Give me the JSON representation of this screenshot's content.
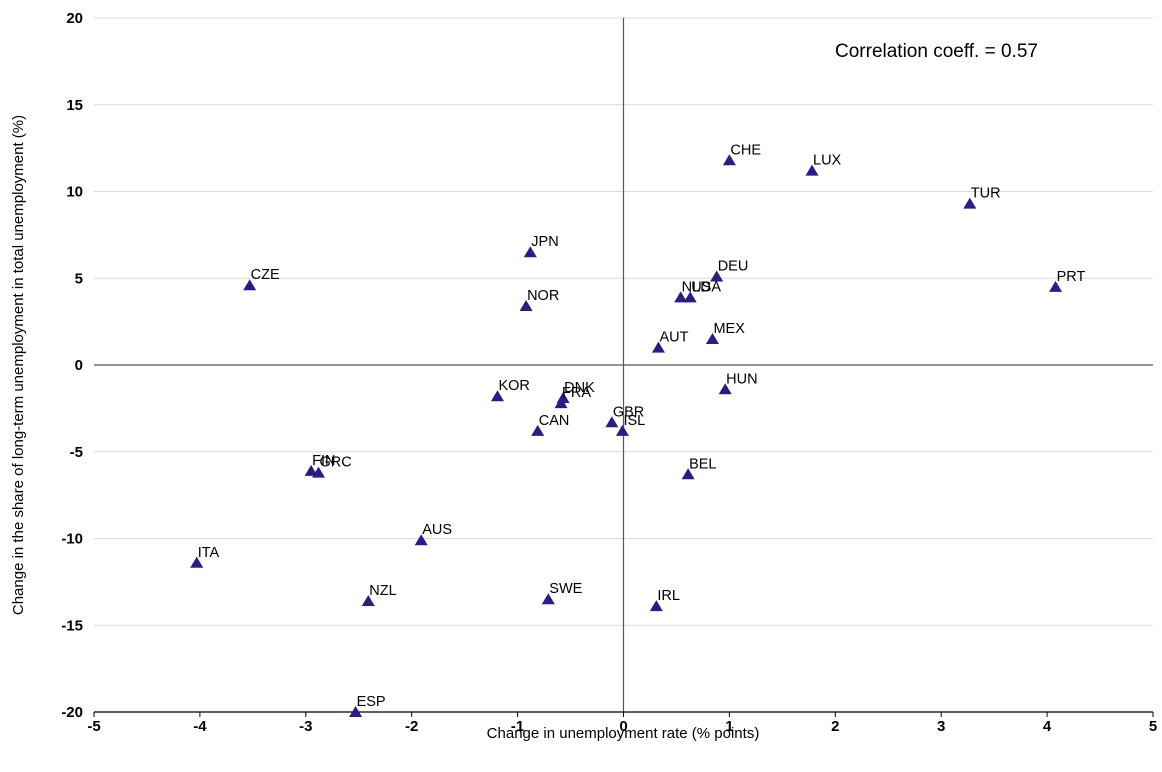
{
  "chart_data": {
    "type": "scatter",
    "title": "",
    "xlabel": "Change in unemployment rate (% points)",
    "ylabel": "Change in the share of long-term unemployment in total unemployment (%)",
    "xlim": [
      -5,
      5
    ],
    "ylim": [
      -20,
      20
    ],
    "xticks": [
      "-5",
      "-4",
      "-3",
      "-2",
      "-1",
      "0",
      "1",
      "2",
      "3",
      "4",
      "5"
    ],
    "yticks": [
      "20",
      "15",
      "10",
      "5",
      "0",
      "-5",
      "-10",
      "-15",
      "-20"
    ],
    "grid": "horizontal",
    "annotation": "Correlation coeff. = 0.57",
    "colors": {
      "marker": "#2e1a87",
      "grid": "#d9d9d9",
      "axis": "#555555"
    },
    "points": [
      {
        "label": "CHE",
        "x": 1.0,
        "y": 11.8
      },
      {
        "label": "LUX",
        "x": 1.78,
        "y": 11.2
      },
      {
        "label": "TUR",
        "x": 3.27,
        "y": 9.3
      },
      {
        "label": "JPN",
        "x": -0.88,
        "y": 6.5
      },
      {
        "label": "CZE",
        "x": -3.53,
        "y": 4.6
      },
      {
        "label": "DEU",
        "x": 0.88,
        "y": 5.1
      },
      {
        "label": "PRT",
        "x": 4.08,
        "y": 4.5
      },
      {
        "label": "USA",
        "x": 0.63,
        "y": 3.9
      },
      {
        "label": "NLD",
        "x": 0.54,
        "y": 3.9
      },
      {
        "label": "NOR",
        "x": -0.92,
        "y": 3.4
      },
      {
        "label": "MEX",
        "x": 0.84,
        "y": 1.5
      },
      {
        "label": "AUT",
        "x": 0.33,
        "y": 1.0
      },
      {
        "label": "HUN",
        "x": 0.96,
        "y": -1.4
      },
      {
        "label": "KOR",
        "x": -1.19,
        "y": -1.8
      },
      {
        "label": "DNK",
        "x": -0.57,
        "y": -1.9
      },
      {
        "label": "FRA",
        "x": -0.59,
        "y": -2.2
      },
      {
        "label": "GBR",
        "x": -0.11,
        "y": -3.3
      },
      {
        "label": "CAN",
        "x": -0.81,
        "y": -3.8
      },
      {
        "label": "ISL",
        "x": -0.01,
        "y": -3.8
      },
      {
        "label": "FIN",
        "x": -2.95,
        "y": -6.1
      },
      {
        "label": "GRC",
        "x": -2.88,
        "y": -6.2
      },
      {
        "label": "BEL",
        "x": 0.61,
        "y": -6.3
      },
      {
        "label": "AUS",
        "x": -1.91,
        "y": -10.1
      },
      {
        "label": "ITA",
        "x": -4.03,
        "y": -11.4
      },
      {
        "label": "NZL",
        "x": -2.41,
        "y": -13.6
      },
      {
        "label": "SWE",
        "x": -0.71,
        "y": -13.5
      },
      {
        "label": "IRL",
        "x": 0.31,
        "y": -13.9
      },
      {
        "label": "ESP",
        "x": -2.53,
        "y": -20.0
      }
    ]
  }
}
